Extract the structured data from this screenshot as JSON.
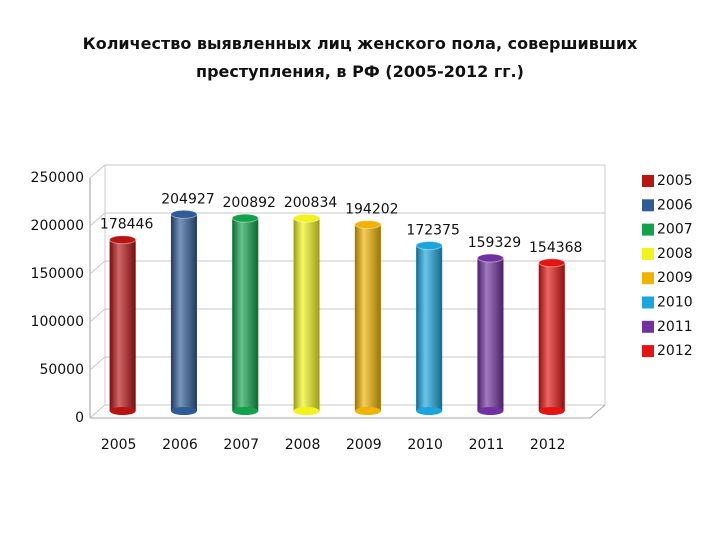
{
  "chart_data": {
    "type": "bar",
    "title": "Количество выявленных лиц женского пола, совершивших преступления, в РФ (2005-2012 гг.)",
    "categories": [
      "2005",
      "2006",
      "2007",
      "2008",
      "2009",
      "2010",
      "2011",
      "2012"
    ],
    "values": [
      178446,
      204927,
      200892,
      200834,
      194202,
      172375,
      159329,
      154368
    ],
    "colors": [
      "#b81414",
      "#2f5b96",
      "#12a14c",
      "#f2f21c",
      "#efb300",
      "#1aa5df",
      "#7132a0",
      "#e41414"
    ],
    "ylim": [
      0,
      250000
    ],
    "yticks": [
      0,
      50000,
      100000,
      150000,
      200000,
      250000
    ],
    "grid": true,
    "legend": "right"
  }
}
